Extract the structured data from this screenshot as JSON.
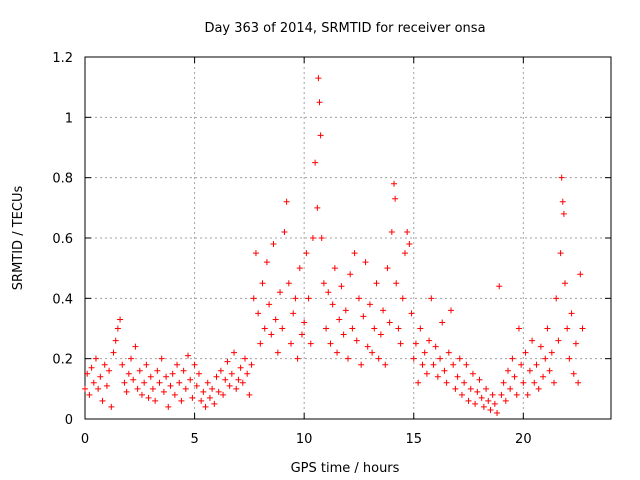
{
  "chart_data": {
    "type": "scatter",
    "title": "Day 363 of 2014, SRMTID for receiver onsa",
    "xlabel": "GPS time / hours",
    "ylabel": "SRMTID / TECUs",
    "xlim": [
      0,
      24
    ],
    "ylim": [
      0,
      1.2
    ],
    "xticks": [
      0,
      5,
      10,
      15,
      20
    ],
    "xtick_labels": [
      "0",
      "5",
      "10",
      "15",
      "20"
    ],
    "yticks": [
      0,
      0.2,
      0.4,
      0.6,
      0.8,
      1.0,
      1.2
    ],
    "ytick_labels": [
      "0",
      "0.2",
      "0.4",
      "0.6",
      "0.8",
      "1",
      "1.2"
    ],
    "grid": true,
    "marker": "plus",
    "color": "#ff0000",
    "series": [
      {
        "name": "SRMTID",
        "points": [
          [
            0.0,
            0.1
          ],
          [
            0.1,
            0.15
          ],
          [
            0.2,
            0.08
          ],
          [
            0.3,
            0.17
          ],
          [
            0.4,
            0.12
          ],
          [
            0.5,
            0.2
          ],
          [
            0.6,
            0.1
          ],
          [
            0.7,
            0.14
          ],
          [
            0.8,
            0.06
          ],
          [
            0.9,
            0.18
          ],
          [
            1.0,
            0.11
          ],
          [
            1.1,
            0.16
          ],
          [
            1.2,
            0.04
          ],
          [
            1.3,
            0.22
          ],
          [
            1.4,
            0.26
          ],
          [
            1.5,
            0.3
          ],
          [
            1.6,
            0.33
          ],
          [
            1.7,
            0.18
          ],
          [
            1.8,
            0.12
          ],
          [
            1.9,
            0.09
          ],
          [
            2.0,
            0.15
          ],
          [
            2.1,
            0.2
          ],
          [
            2.2,
            0.13
          ],
          [
            2.3,
            0.24
          ],
          [
            2.4,
            0.1
          ],
          [
            2.5,
            0.16
          ],
          [
            2.6,
            0.08
          ],
          [
            2.7,
            0.12
          ],
          [
            2.8,
            0.18
          ],
          [
            2.9,
            0.07
          ],
          [
            3.0,
            0.14
          ],
          [
            3.1,
            0.1
          ],
          [
            3.2,
            0.06
          ],
          [
            3.3,
            0.16
          ],
          [
            3.4,
            0.12
          ],
          [
            3.5,
            0.2
          ],
          [
            3.6,
            0.09
          ],
          [
            3.7,
            0.14
          ],
          [
            3.8,
            0.04
          ],
          [
            3.9,
            0.11
          ],
          [
            4.0,
            0.15
          ],
          [
            4.1,
            0.08
          ],
          [
            4.2,
            0.18
          ],
          [
            4.3,
            0.12
          ],
          [
            4.4,
            0.06
          ],
          [
            4.5,
            0.16
          ],
          [
            4.6,
            0.1
          ],
          [
            4.7,
            0.21
          ],
          [
            4.8,
            0.13
          ],
          [
            4.9,
            0.07
          ],
          [
            5.0,
            0.18
          ],
          [
            5.1,
            0.11
          ],
          [
            5.2,
            0.15
          ],
          [
            5.3,
            0.06
          ],
          [
            5.4,
            0.09
          ],
          [
            5.5,
            0.04
          ],
          [
            5.6,
            0.12
          ],
          [
            5.7,
            0.07
          ],
          [
            5.8,
            0.1
          ],
          [
            5.9,
            0.05
          ],
          [
            6.0,
            0.14
          ],
          [
            6.1,
            0.09
          ],
          [
            6.2,
            0.16
          ],
          [
            6.3,
            0.08
          ],
          [
            6.4,
            0.13
          ],
          [
            6.5,
            0.19
          ],
          [
            6.6,
            0.11
          ],
          [
            6.7,
            0.15
          ],
          [
            6.8,
            0.22
          ],
          [
            6.9,
            0.1
          ],
          [
            7.0,
            0.13
          ],
          [
            7.1,
            0.17
          ],
          [
            7.2,
            0.12
          ],
          [
            7.3,
            0.2
          ],
          [
            7.4,
            0.15
          ],
          [
            7.5,
            0.08
          ],
          [
            7.6,
            0.18
          ],
          [
            7.7,
            0.4
          ],
          [
            7.8,
            0.55
          ],
          [
            7.9,
            0.35
          ],
          [
            8.0,
            0.25
          ],
          [
            8.1,
            0.45
          ],
          [
            8.2,
            0.3
          ],
          [
            8.3,
            0.52
          ],
          [
            8.4,
            0.38
          ],
          [
            8.5,
            0.28
          ],
          [
            8.6,
            0.58
          ],
          [
            8.7,
            0.33
          ],
          [
            8.8,
            0.22
          ],
          [
            8.9,
            0.42
          ],
          [
            9.0,
            0.3
          ],
          [
            9.1,
            0.62
          ],
          [
            9.2,
            0.72
          ],
          [
            9.3,
            0.45
          ],
          [
            9.4,
            0.25
          ],
          [
            9.5,
            0.35
          ],
          [
            9.6,
            0.4
          ],
          [
            9.7,
            0.2
          ],
          [
            9.8,
            0.5
          ],
          [
            9.9,
            0.28
          ],
          [
            10.0,
            0.32
          ],
          [
            10.1,
            0.55
          ],
          [
            10.2,
            0.4
          ],
          [
            10.3,
            0.25
          ],
          [
            10.4,
            0.6
          ],
          [
            10.5,
            0.85
          ],
          [
            10.6,
            0.7
          ],
          [
            10.65,
            1.13
          ],
          [
            10.7,
            1.05
          ],
          [
            10.75,
            0.94
          ],
          [
            10.8,
            0.6
          ],
          [
            10.9,
            0.45
          ],
          [
            11.0,
            0.3
          ],
          [
            11.1,
            0.42
          ],
          [
            11.2,
            0.25
          ],
          [
            11.3,
            0.38
          ],
          [
            11.4,
            0.5
          ],
          [
            11.5,
            0.22
          ],
          [
            11.6,
            0.33
          ],
          [
            11.7,
            0.44
          ],
          [
            11.8,
            0.28
          ],
          [
            11.9,
            0.36
          ],
          [
            12.0,
            0.2
          ],
          [
            12.1,
            0.48
          ],
          [
            12.2,
            0.3
          ],
          [
            12.3,
            0.55
          ],
          [
            12.4,
            0.26
          ],
          [
            12.5,
            0.4
          ],
          [
            12.6,
            0.18
          ],
          [
            12.7,
            0.34
          ],
          [
            12.8,
            0.52
          ],
          [
            12.9,
            0.24
          ],
          [
            13.0,
            0.38
          ],
          [
            13.1,
            0.22
          ],
          [
            13.2,
            0.3
          ],
          [
            13.3,
            0.45
          ],
          [
            13.4,
            0.2
          ],
          [
            13.5,
            0.28
          ],
          [
            13.6,
            0.36
          ],
          [
            13.7,
            0.18
          ],
          [
            13.8,
            0.5
          ],
          [
            13.9,
            0.32
          ],
          [
            14.0,
            0.62
          ],
          [
            14.1,
            0.78
          ],
          [
            14.15,
            0.73
          ],
          [
            14.2,
            0.45
          ],
          [
            14.3,
            0.3
          ],
          [
            14.4,
            0.25
          ],
          [
            14.5,
            0.4
          ],
          [
            14.6,
            0.55
          ],
          [
            14.7,
            0.62
          ],
          [
            14.8,
            0.58
          ],
          [
            14.9,
            0.35
          ],
          [
            15.0,
            0.2
          ],
          [
            15.1,
            0.25
          ],
          [
            15.2,
            0.12
          ],
          [
            15.3,
            0.3
          ],
          [
            15.4,
            0.18
          ],
          [
            15.5,
            0.22
          ],
          [
            15.6,
            0.15
          ],
          [
            15.7,
            0.26
          ],
          [
            15.8,
            0.4
          ],
          [
            15.9,
            0.18
          ],
          [
            16.0,
            0.24
          ],
          [
            16.1,
            0.14
          ],
          [
            16.2,
            0.2
          ],
          [
            16.3,
            0.32
          ],
          [
            16.4,
            0.16
          ],
          [
            16.5,
            0.12
          ],
          [
            16.6,
            0.22
          ],
          [
            16.7,
            0.36
          ],
          [
            16.8,
            0.18
          ],
          [
            16.9,
            0.1
          ],
          [
            17.0,
            0.14
          ],
          [
            17.1,
            0.2
          ],
          [
            17.2,
            0.08
          ],
          [
            17.3,
            0.12
          ],
          [
            17.4,
            0.18
          ],
          [
            17.5,
            0.06
          ],
          [
            17.6,
            0.1
          ],
          [
            17.7,
            0.15
          ],
          [
            17.8,
            0.05
          ],
          [
            17.9,
            0.09
          ],
          [
            18.0,
            0.13
          ],
          [
            18.1,
            0.07
          ],
          [
            18.2,
            0.04
          ],
          [
            18.3,
            0.1
          ],
          [
            18.4,
            0.06
          ],
          [
            18.5,
            0.03
          ],
          [
            18.6,
            0.08
          ],
          [
            18.7,
            0.05
          ],
          [
            18.8,
            0.02
          ],
          [
            18.9,
            0.44
          ],
          [
            19.0,
            0.08
          ],
          [
            19.1,
            0.12
          ],
          [
            19.2,
            0.06
          ],
          [
            19.3,
            0.16
          ],
          [
            19.4,
            0.1
          ],
          [
            19.5,
            0.2
          ],
          [
            19.6,
            0.14
          ],
          [
            19.7,
            0.08
          ],
          [
            19.8,
            0.3
          ],
          [
            19.9,
            0.18
          ],
          [
            20.0,
            0.12
          ],
          [
            20.1,
            0.22
          ],
          [
            20.2,
            0.08
          ],
          [
            20.3,
            0.16
          ],
          [
            20.4,
            0.26
          ],
          [
            20.5,
            0.12
          ],
          [
            20.6,
            0.18
          ],
          [
            20.7,
            0.1
          ],
          [
            20.8,
            0.24
          ],
          [
            20.9,
            0.14
          ],
          [
            21.0,
            0.2
          ],
          [
            21.1,
            0.3
          ],
          [
            21.2,
            0.16
          ],
          [
            21.3,
            0.22
          ],
          [
            21.4,
            0.12
          ],
          [
            21.5,
            0.4
          ],
          [
            21.6,
            0.26
          ],
          [
            21.7,
            0.55
          ],
          [
            21.75,
            0.8
          ],
          [
            21.8,
            0.72
          ],
          [
            21.85,
            0.68
          ],
          [
            21.9,
            0.45
          ],
          [
            22.0,
            0.3
          ],
          [
            22.1,
            0.2
          ],
          [
            22.2,
            0.35
          ],
          [
            22.3,
            0.15
          ],
          [
            22.4,
            0.25
          ],
          [
            22.5,
            0.12
          ],
          [
            22.6,
            0.48
          ],
          [
            22.7,
            0.3
          ]
        ]
      }
    ]
  }
}
